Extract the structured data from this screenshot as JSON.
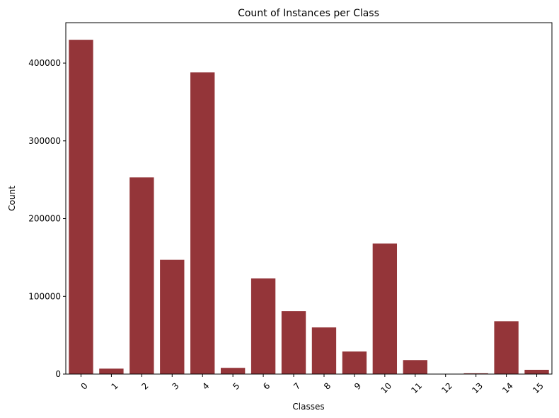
{
  "chart_data": {
    "type": "bar",
    "title": "Count of Instances per Class",
    "xlabel": "Classes",
    "ylabel": "Count",
    "categories": [
      "0",
      "1",
      "2",
      "3",
      "4",
      "5",
      "6",
      "7",
      "8",
      "9",
      "10",
      "11",
      "12",
      "13",
      "14",
      "15"
    ],
    "values": [
      430000,
      7000,
      253000,
      147000,
      388000,
      8000,
      123000,
      81000,
      60000,
      29000,
      168000,
      18000,
      0,
      1000,
      68000,
      5500
    ],
    "ylim": [
      0,
      452000
    ],
    "yticks": [
      0,
      100000,
      200000,
      300000,
      400000
    ],
    "ytick_labels": [
      "0",
      "100000",
      "200000",
      "300000",
      "400000"
    ],
    "xtick_rotation": -45,
    "bar_color": "#943539",
    "grid": false,
    "legend": "none"
  }
}
